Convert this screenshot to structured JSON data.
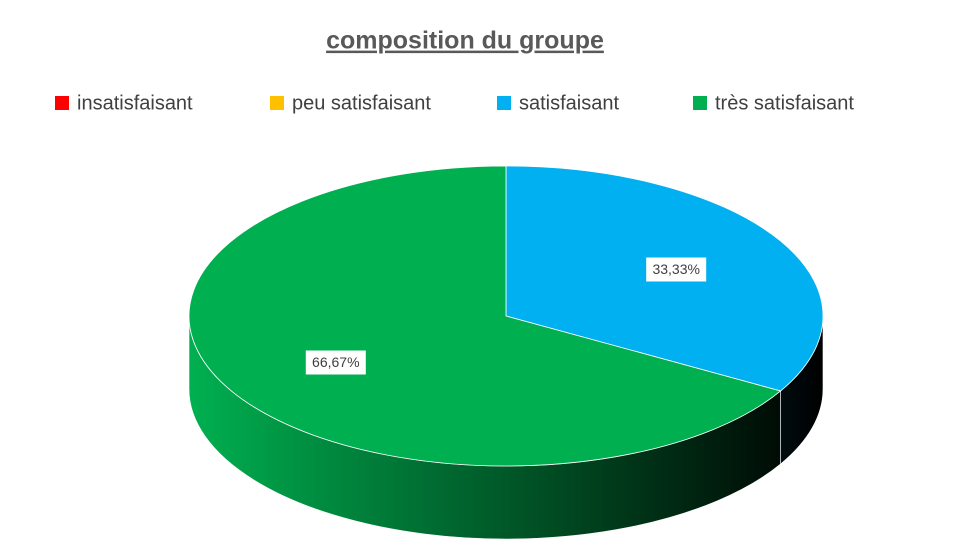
{
  "chart_data": {
    "type": "pie",
    "title": "composition du groupe",
    "categories": [
      "insatisfaisant",
      "peu satisfaisant",
      "satisfaisant",
      "très satisfaisant"
    ],
    "values": [
      0,
      0,
      33.33,
      66.67
    ],
    "value_labels": [
      null,
      null,
      "33,33%",
      "66,67%"
    ],
    "colors": [
      "#ff0000",
      "#ffc000",
      "#00b0f0",
      "#00b050"
    ],
    "legend": "top"
  }
}
